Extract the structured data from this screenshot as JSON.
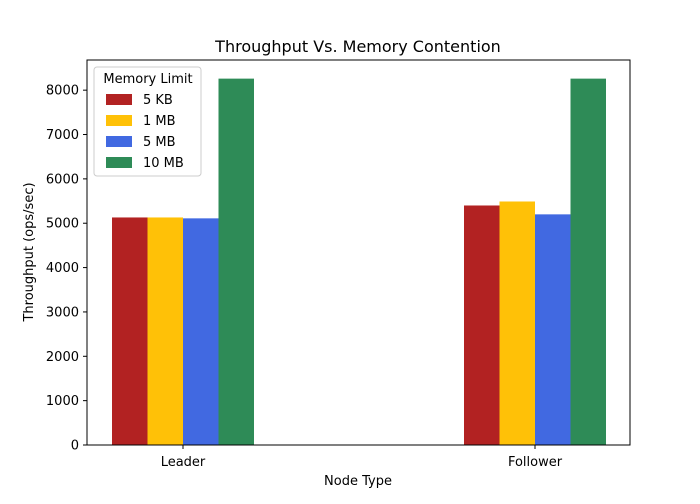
{
  "chart_data": {
    "type": "bar",
    "title": "Throughput Vs. Memory Contention",
    "xlabel": "Node Type",
    "ylabel": "Throughput (ops/sec)",
    "categories": [
      "Leader",
      "Follower"
    ],
    "ylim": [
      0,
      8680
    ],
    "yticks": [
      0,
      1000,
      2000,
      3000,
      4000,
      5000,
      6000,
      7000,
      8000
    ],
    "legend": {
      "title": "Memory Limit",
      "position": "top-left"
    },
    "grid": false,
    "series": [
      {
        "name": "5 KB",
        "color": "#b22222",
        "values": [
          5130,
          5400
        ]
      },
      {
        "name": "1 MB",
        "color": "#ffc107",
        "values": [
          5130,
          5490
        ]
      },
      {
        "name": "5 MB",
        "color": "#4169e1",
        "values": [
          5110,
          5200
        ]
      },
      {
        "name": "10 MB",
        "color": "#2e8b57",
        "values": [
          8260,
          8260
        ]
      }
    ]
  }
}
